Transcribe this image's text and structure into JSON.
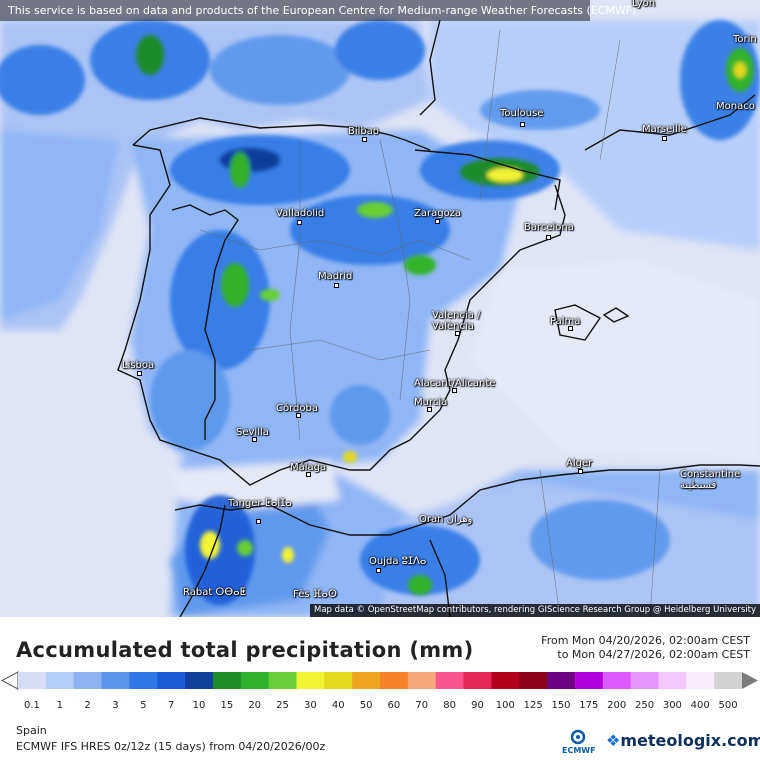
{
  "header": {
    "disclaimer": "This service is based on data and products of the European Centre for Medium-range Weather Forecasts (ECMWF)"
  },
  "map": {
    "attribution": "Map data © OpenStreetMap contributors, rendering GIScience Research Group @ Heidelberg University",
    "cities": [
      {
        "name": "Lyon",
        "key": "lyon"
      },
      {
        "name": "Torin",
        "key": "torin"
      },
      {
        "name": "Monaco",
        "key": "monaco"
      },
      {
        "name": "Bilbao",
        "key": "bilbao"
      },
      {
        "name": "Toulouse",
        "key": "toulouse"
      },
      {
        "name": "Marseille",
        "key": "marseille"
      },
      {
        "name": "Valladolid",
        "key": "valladolid"
      },
      {
        "name": "Zaragoza",
        "key": "zaragoza"
      },
      {
        "name": "Barcelona",
        "key": "barcelona"
      },
      {
        "name": "Madrid",
        "key": "madrid"
      },
      {
        "name": "Valencia / València",
        "key": "valencia"
      },
      {
        "name": "Palma",
        "key": "palma"
      },
      {
        "name": "Lisboa",
        "key": "lisboa"
      },
      {
        "name": "Alacant/Alicante",
        "key": "alicante"
      },
      {
        "name": "Murcia",
        "key": "murcia"
      },
      {
        "name": "Córdoba",
        "key": "cordoba"
      },
      {
        "name": "Sevilla",
        "key": "sevilla"
      },
      {
        "name": "Málaga",
        "key": "malaga"
      },
      {
        "name": "Alger",
        "key": "alger"
      },
      {
        "name": "Constantine قسنطينة",
        "key": "constantine"
      },
      {
        "name": "Tanger ⵟⴰⵏⵊⴰ",
        "key": "tanger"
      },
      {
        "name": "Oran وهران",
        "key": "oran"
      },
      {
        "name": "Oujda ⵓⵊⴷⴰ",
        "key": "oujda"
      },
      {
        "name": "Rabat ⵔⴱⴰⵟ",
        "key": "rabat"
      },
      {
        "name": "Fès ⴼⴰⵙ",
        "key": "fes"
      }
    ],
    "contour_value": "5"
  },
  "footer": {
    "title": "Accumulated total precipitation (mm)",
    "period_from": "From Mon 04/20/2026, 02:00am CEST",
    "period_to": "to Mon 04/27/2026, 02:00am CEST",
    "region": "Spain",
    "model": "ECMWF IFS HRES 0z/12z (15 days) from 04/20/2026/00z",
    "ecmwf_logo_text": "ECMWF",
    "brand": "meteologix.com"
  },
  "legend": {
    "labels": [
      "0.1",
      "1",
      "2",
      "3",
      "5",
      "7",
      "10",
      "15",
      "20",
      "25",
      "30",
      "40",
      "50",
      "60",
      "70",
      "80",
      "90",
      "100",
      "125",
      "150",
      "175",
      "200",
      "250",
      "300",
      "400",
      "500"
    ],
    "colors": [
      "#d7dcf5",
      "#b4cdfa",
      "#8cb4f5",
      "#5a96ec",
      "#2f78e6",
      "#1a5bd8",
      "#0f3e9c",
      "#1f8c2a",
      "#30b32c",
      "#66d036",
      "#f3f335",
      "#e3d91f",
      "#f0a521",
      "#f7822a",
      "#f7a87a",
      "#f9558f",
      "#e62857",
      "#b4001e",
      "#8c0019",
      "#6e0082",
      "#b400dc",
      "#dc5aff",
      "#e694ff",
      "#f3c8ff",
      "#f8ecfd",
      "#d2d2d2"
    ]
  }
}
